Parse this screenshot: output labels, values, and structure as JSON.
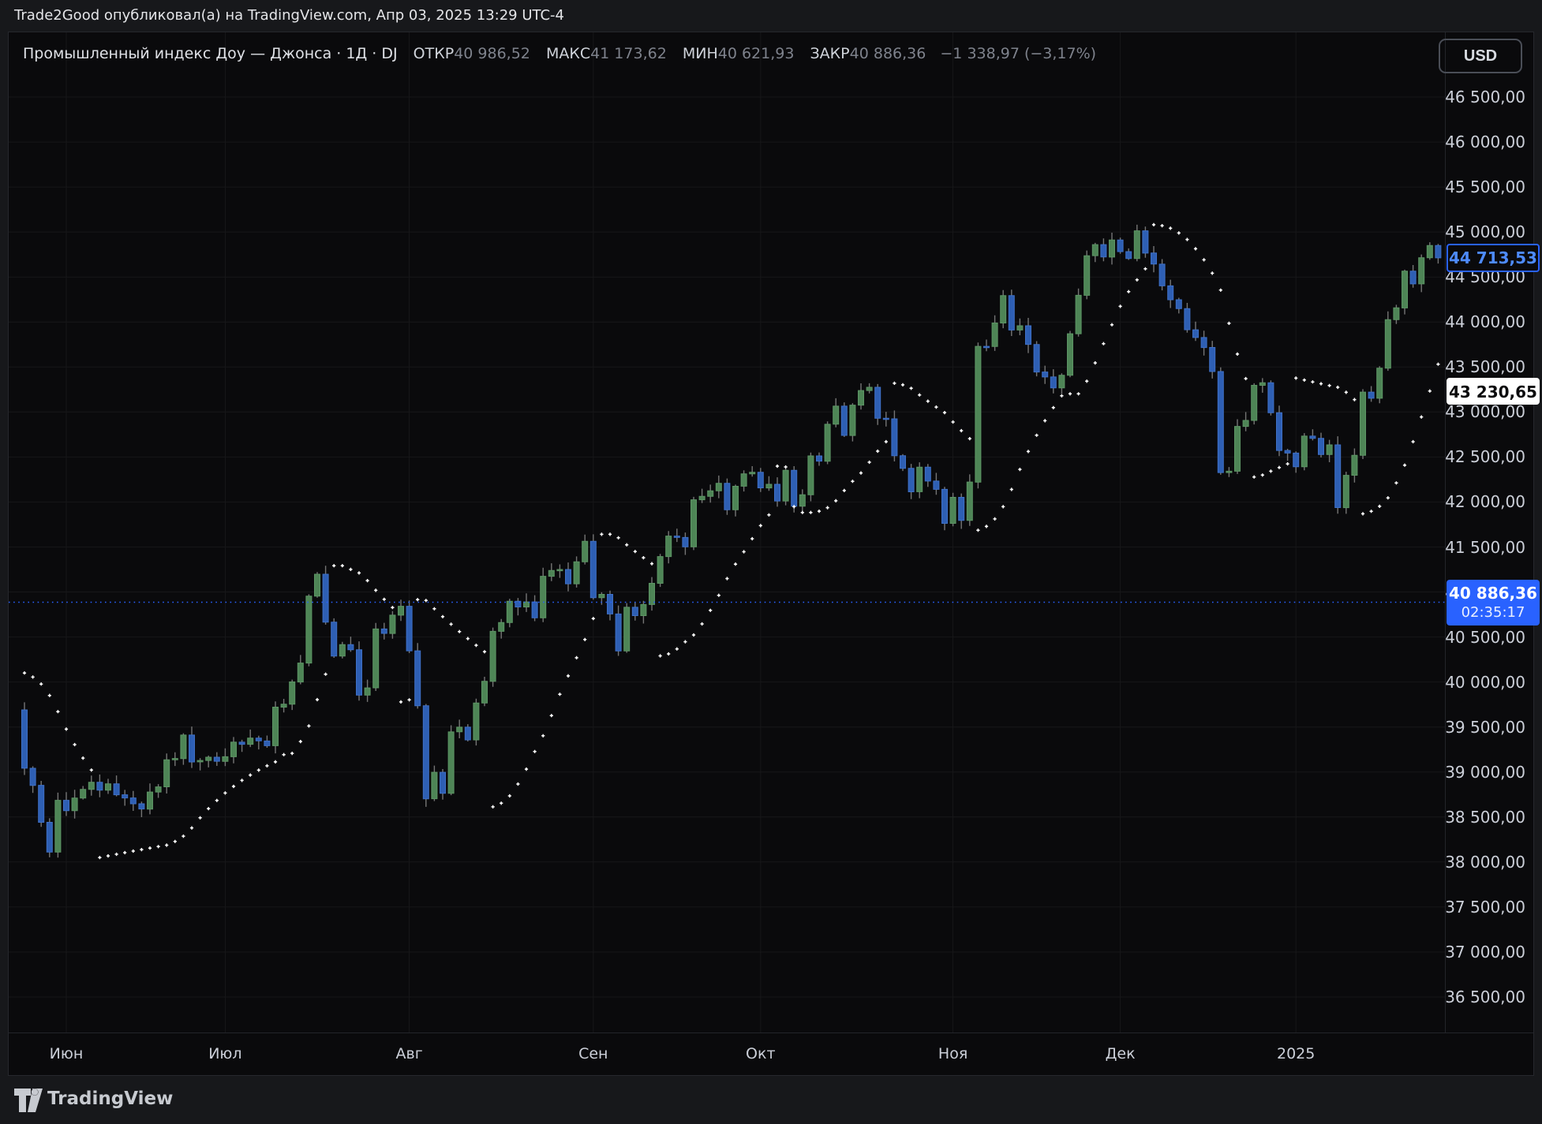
{
  "publisher_bar": {
    "text": "Trade2Good опубликовал(а) на TradingView.com, Апр 03, 2025 13:29 UTC-4"
  },
  "header": {
    "title": "Промышленный индекс Доу — Джонса · 1Д · DJ",
    "ohlc": [
      {
        "label": "ОТКР",
        "value": "40 986,52"
      },
      {
        "label": "МАКС",
        "value": "41 173,62"
      },
      {
        "label": "МИН",
        "value": "40 621,93"
      },
      {
        "label": "ЗАКР",
        "value": "40 886,36"
      }
    ],
    "change": "−1 338,97 (−3,17%)",
    "currency_button": "USD"
  },
  "price_axis": {
    "ticks": [
      "46 500,00",
      "46 000,00",
      "45 500,00",
      "45 000,00",
      "44 500,00",
      "44 000,00",
      "43 500,00",
      "43 000,00",
      "42 500,00",
      "42 000,00",
      "41 500,00",
      "41 000,00",
      "40 500,00",
      "40 000,00",
      "39 500,00",
      "39 000,00",
      "38 500,00",
      "38 000,00",
      "37 500,00",
      "37 000,00",
      "36 500,00"
    ],
    "labels": {
      "last_close": {
        "text": "44 713,53",
        "value": 44713.53
      },
      "sar_value": {
        "text": "43 230,65",
        "value": 43230.65
      },
      "current_price": {
        "text": "40 886,36",
        "countdown": "02:35:17",
        "value": 40886.36
      }
    }
  },
  "time_axis": {
    "labels": [
      {
        "text": "Июн",
        "index": 5
      },
      {
        "text": "Июл",
        "index": 24
      },
      {
        "text": "Авг",
        "index": 46
      },
      {
        "text": "Сен",
        "index": 68
      },
      {
        "text": "Окт",
        "index": 88
      },
      {
        "text": "Ноя",
        "index": 111
      },
      {
        "text": "Дек",
        "index": 131
      },
      {
        "text": "2025",
        "index": 152
      }
    ]
  },
  "footer": {
    "brand": "TradingView"
  },
  "chart_data": {
    "type": "candlestick",
    "symbol": "DJ",
    "timeframe": "1Д",
    "title": "Промышленный индекс Доу — Джонса",
    "indicator": "Parabolic SAR (step 0.02, max 0.2)",
    "ylim": [
      36105,
      46824
    ],
    "x_range": "Май 2024 — Янв 2025 (дневные бары); текущая цена Апр 03 2025 показана меткой 40 886,36",
    "first_open": 39690,
    "sar_start": 40100,
    "closes": [
      39042,
      38852,
      38441,
      38111,
      38686,
      38571,
      38711,
      38807,
      38886,
      38799,
      38868,
      38747,
      38712,
      38647,
      38589,
      38778,
      38835,
      39135,
      39150,
      39411,
      39112,
      39128,
      39164,
      39119,
      39170,
      39332,
      39308,
      39376,
      39345,
      39292,
      39721,
      39754,
      40001,
      40211,
      40954,
      41198,
      40665,
      40288,
      40415,
      40358,
      39854,
      39935,
      40589,
      40540,
      40743,
      40842,
      40347,
      39737,
      38703,
      38997,
      38763,
      39446,
      39498,
      39357,
      39766,
      40008,
      40563,
      40660,
      40897,
      40834,
      40890,
      40713,
      41175,
      41240,
      41250,
      41091,
      41335,
      41563,
      40937,
      40974,
      40756,
      40345,
      40830,
      40737,
      40861,
      41097,
      41394,
      41622,
      41606,
      41503,
      42025,
      42063,
      42124,
      42208,
      41914,
      42175,
      42313,
      42330,
      42157,
      42197,
      42012,
      42353,
      41954,
      42080,
      42512,
      42454,
      42864,
      43065,
      42740,
      43077,
      43239,
      43275,
      42931,
      42924,
      42515,
      42374,
      42114,
      42387,
      42233,
      42141,
      41763,
      42052,
      41795,
      42222,
      43730,
      43729,
      43989,
      44293,
      43911,
      43958,
      43751,
      43445,
      43390,
      43269,
      43408,
      43870,
      44297,
      44737,
      44860,
      44722,
      44911,
      44782,
      44706,
      45014,
      44766,
      44643,
      44402,
      44248,
      44149,
      43914,
      43828,
      43717,
      43450,
      42327,
      42342,
      42840,
      42907,
      43297,
      43326,
      42992,
      42573,
      42544,
      42392,
      42732,
      42707,
      42528,
      42635,
      41938,
      42297,
      42518,
      43221,
      43153,
      43488,
      44026,
      44157,
      44565,
      44424,
      44714,
      44850,
      44713.53
    ],
    "colors": {
      "up": "#4e8556",
      "up_border": "#5d9565",
      "down": "#2e5fb4",
      "down_border": "#3f70c6",
      "wick": "#757575",
      "sar_dots": "#ffffff",
      "price_line": "#2962ff",
      "grid": "rgba(255,255,255,0.055)",
      "background": "#0a0a0c"
    }
  }
}
